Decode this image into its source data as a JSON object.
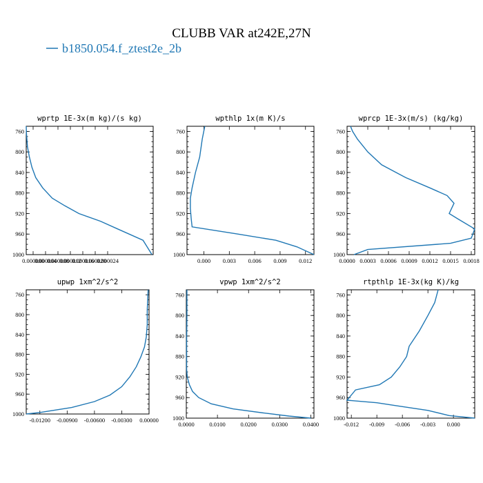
{
  "title": "CLUBB VAR at242E,27N",
  "legend": {
    "label": "b1850.054.f_ztest2e_2b",
    "color": "#1f77b4"
  },
  "chart_data": [
    {
      "type": "line",
      "title": "wprtp  1E-3x(m kg)/(s kg)",
      "ylabel": "",
      "xlabel": "",
      "ylim": [
        1000,
        750
      ],
      "y_ticks": [
        1000,
        960,
        920,
        880,
        840,
        800,
        760
      ],
      "xlim": [
        0,
        0.0001
      ],
      "x_tick_labels": [
        "0.000000",
        "0.000004",
        "0.000008",
        "0.000012",
        "0.000016",
        "0.000020",
        "0.000024"
      ],
      "series": [
        {
          "x": [
            0.0,
            2e-07,
            1e-06,
            2.5e-06,
            4.5e-06,
            7.5e-06,
            1.3e-05,
            2.05e-05,
            3.05e-05,
            4.15e-05,
            5.85e-05,
            7.2e-05,
            9.2e-05,
            9.9e-05
          ],
          "y": [
            750,
            765,
            790,
            810,
            830,
            850,
            870,
            890,
            905,
            920,
            935,
            950,
            972,
            1000
          ]
        }
      ]
    },
    {
      "type": "line",
      "title": "wpthlp  1x(m K)/s",
      "ylabel": "",
      "xlabel": "",
      "ylim": [
        1000,
        750
      ],
      "y_ticks": [
        1000,
        960,
        920,
        880,
        840,
        800,
        760
      ],
      "xlim": [
        -0.002,
        0.013
      ],
      "x_ticks": [
        0.0,
        0.003,
        0.006,
        0.009,
        0.012
      ],
      "x_tick_labels": [
        "0.000",
        "0.003",
        "0.006",
        "0.009",
        "0.012"
      ],
      "series": [
        {
          "x": [
            0.0001,
            -0.0002,
            -0.0005,
            -0.001,
            -0.0014,
            -0.0016,
            -0.0016,
            -0.0015,
            -0.0014,
            0.004,
            0.0085,
            0.011,
            0.013
          ],
          "y": [
            750,
            775,
            810,
            840,
            870,
            890,
            910,
            930,
            946,
            960,
            972,
            985,
            1000
          ]
        }
      ]
    },
    {
      "type": "line",
      "title": "wprcp  1E-3x(m/s) (kg/kg)",
      "ylabel": "",
      "xlabel": "",
      "ylim": [
        1000,
        750
      ],
      "y_ticks": [
        1000,
        960,
        920,
        880,
        840,
        800,
        760
      ],
      "xlim": [
        0,
        0.00185
      ],
      "x_ticks": [
        0.0,
        0.0003,
        0.0006,
        0.0009,
        0.0012,
        0.0015,
        0.0018
      ],
      "x_tick_labels": [
        "0.0000",
        "0.0003",
        "0.0006",
        "0.0009",
        "0.0012",
        "0.0015",
        "0.0018"
      ],
      "series": [
        {
          "x": [
            5e-05,
            8e-05,
            0.00015,
            0.0003,
            0.0005,
            0.00085,
            0.0012,
            0.00145,
            0.00155,
            0.00148,
            0.0016,
            0.00185,
            0.0018,
            0.0015,
            0.0003,
            0.0001
          ],
          "y": [
            750,
            760,
            775,
            800,
            825,
            850,
            870,
            885,
            900,
            920,
            930,
            950,
            968,
            978,
            990,
            1000
          ]
        }
      ]
    },
    {
      "type": "line",
      "title": "upwp  1xm^2/s^2",
      "ylabel": "",
      "xlabel": "",
      "ylim": [
        1000,
        750
      ],
      "y_ticks": [
        1000,
        960,
        920,
        880,
        840,
        800,
        760
      ],
      "xlim": [
        -0.0135,
        0.0
      ],
      "x_ticks": [
        -0.012,
        -0.009,
        -0.006,
        -0.003,
        0.0
      ],
      "x_tick_labels": [
        "-0.01200",
        "-0.00900",
        "-0.00600",
        "-0.00300",
        "0.00000"
      ],
      "series": [
        {
          "x": [
            -0.0001,
            -0.0002,
            -0.0002,
            -0.0003,
            -0.0005,
            -0.0009,
            -0.0014,
            -0.0021,
            -0.003,
            -0.0043,
            -0.006,
            -0.0085,
            -0.012,
            -0.0135
          ],
          "y": [
            750,
            790,
            820,
            845,
            865,
            885,
            905,
            925,
            945,
            962,
            975,
            987,
            997,
            1000
          ]
        }
      ]
    },
    {
      "type": "line",
      "title": "vpwp  1xm^2/s^2",
      "ylabel": "",
      "xlabel": "",
      "ylim": [
        1000,
        750
      ],
      "y_ticks": [
        1000,
        960,
        920,
        880,
        840,
        800,
        760
      ],
      "xlim": [
        0,
        0.041
      ],
      "x_ticks": [
        0.0,
        0.01,
        0.02,
        0.03,
        0.04
      ],
      "x_tick_labels": [
        "0.0000",
        "0.0100",
        "0.0200",
        "0.0300",
        "0.0400"
      ],
      "series": [
        {
          "x": [
            0.0002,
            0.0002,
            0.0001,
            0.0001,
            0.0001,
            0.0003,
            0.001,
            0.002,
            0.004,
            0.008,
            0.015,
            0.025,
            0.033,
            0.04
          ],
          "y": [
            750,
            800,
            850,
            880,
            905,
            920,
            935,
            948,
            960,
            972,
            982,
            990,
            996,
            1000
          ]
        }
      ]
    },
    {
      "type": "line",
      "title": "rtpthlp  1E-3x(kg K)/kg",
      "ylabel": "",
      "xlabel": "",
      "ylim": [
        1000,
        750
      ],
      "y_ticks": [
        1000,
        960,
        920,
        880,
        840,
        800,
        760
      ],
      "xlim": [
        -0.0125,
        0.0025
      ],
      "x_ticks": [
        -0.012,
        -0.009,
        -0.006,
        -0.003,
        0.0
      ],
      "x_tick_labels": [
        "-0.012",
        "-0.009",
        "-0.006",
        "-0.003",
        "0.000"
      ],
      "series": [
        {
          "x": [
            -0.0018,
            -0.0022,
            -0.003,
            -0.004,
            -0.0052,
            -0.0055,
            -0.0063,
            -0.0073,
            -0.0087,
            -0.0115,
            -0.0125,
            -0.009,
            -0.007,
            -0.003,
            -0.0005,
            0.0025
          ],
          "y": [
            750,
            775,
            800,
            830,
            860,
            880,
            900,
            920,
            935,
            945,
            965,
            970,
            975,
            985,
            995,
            1000
          ]
        }
      ]
    }
  ]
}
